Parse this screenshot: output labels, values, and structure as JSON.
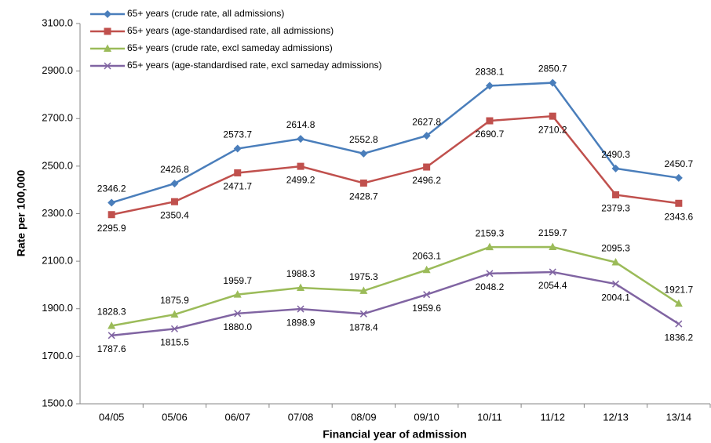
{
  "chart_data": {
    "type": "line",
    "x_label": "Financial year of admission",
    "y_label": "Rate per 100,000",
    "categories": [
      "04/05",
      "05/06",
      "06/07",
      "07/08",
      "08/09",
      "09/10",
      "10/11",
      "11/12",
      "12/13",
      "13/14"
    ],
    "ylim": [
      1500,
      3100
    ],
    "yticks": [
      {
        "value": 1500,
        "label": "1500.0"
      },
      {
        "value": 1700,
        "label": "1700.0"
      },
      {
        "value": 1900,
        "label": "1900.0"
      },
      {
        "value": 2100,
        "label": "2100.0"
      },
      {
        "value": 2300,
        "label": "2300.0"
      },
      {
        "value": 2500,
        "label": "2500.0"
      },
      {
        "value": 2700,
        "label": "2700.0"
      },
      {
        "value": 2900,
        "label": "2900.0"
      },
      {
        "value": 3100,
        "label": "3100.0"
      }
    ],
    "grid": false,
    "legend": "top-left",
    "series": [
      {
        "name": "65+ years (crude rate, all admissions)",
        "color": "#4a7ebb",
        "marker": "diamond",
        "label_position": "above",
        "values": [
          2346.2,
          2426.8,
          2573.7,
          2614.8,
          2552.8,
          2627.8,
          2838.1,
          2850.7,
          2490.3,
          2450.7
        ]
      },
      {
        "name": "65+ years (age-standardised rate, all admissions)",
        "color": "#c0504d",
        "marker": "square",
        "label_position": "below",
        "values": [
          2295.9,
          2350.4,
          2471.7,
          2499.2,
          2428.7,
          2496.2,
          2690.7,
          2710.2,
          2379.3,
          2343.6
        ]
      },
      {
        "name": "65+ years (crude rate, excl sameday admissions)",
        "color": "#9bbb59",
        "marker": "triangle",
        "label_position": "above",
        "values": [
          1828.3,
          1875.9,
          1959.7,
          1988.3,
          1975.3,
          2063.1,
          2159.3,
          2159.7,
          2095.3,
          1921.7
        ]
      },
      {
        "name": "65+ years (age-standardised rate, excl sameday admissions)",
        "color": "#8064a2",
        "marker": "x",
        "label_position": "below",
        "values": [
          1787.6,
          1815.5,
          1880.0,
          1898.9,
          1878.4,
          1959.6,
          2048.2,
          2054.4,
          2004.1,
          1836.2
        ],
        "value_labels": [
          "1787.6",
          "1815.5",
          "1880.0",
          "1898.9",
          "1878.4",
          "1959.6",
          "2048.2",
          "2054.4",
          "2004.1",
          "1836.2"
        ]
      }
    ]
  }
}
